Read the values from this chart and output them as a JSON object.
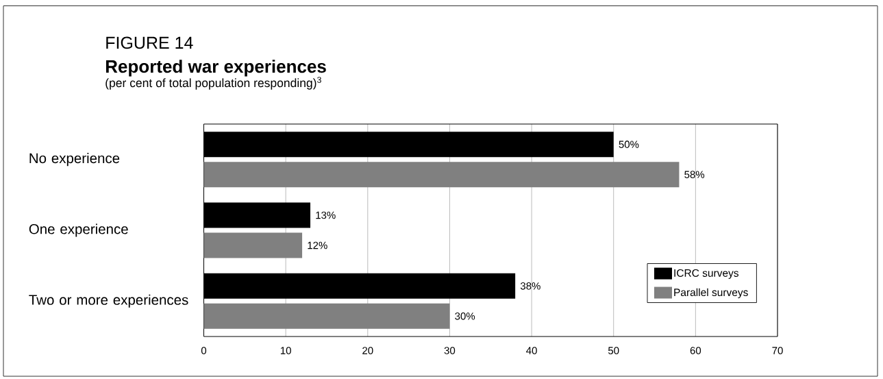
{
  "chart_data": {
    "type": "bar",
    "orientation": "horizontal",
    "title": "Reported war experiences",
    "subtitle": "(per cent of total population responding)$^{3}$",
    "annotations": [
      "FIGURE 14"
    ],
    "categories": [
      "No experience",
      "One experience",
      "Two or more experiences"
    ],
    "series": [
      {
        "name": "ICRC surveys",
        "color": "#000000",
        "values": [
          50,
          13,
          38
        ],
        "value_labels": [
          "50%",
          "13%",
          "38%"
        ]
      },
      {
        "name": "Parallel surveys",
        "color": "#808080",
        "values": [
          58,
          12,
          30
        ],
        "value_labels": [
          "58%",
          "12%",
          "30%"
        ]
      }
    ],
    "xlim": [
      0,
      70
    ],
    "xticks": [
      0,
      10,
      20,
      30,
      40,
      50,
      60,
      70
    ],
    "grid": "x",
    "legend": "bottom right"
  }
}
